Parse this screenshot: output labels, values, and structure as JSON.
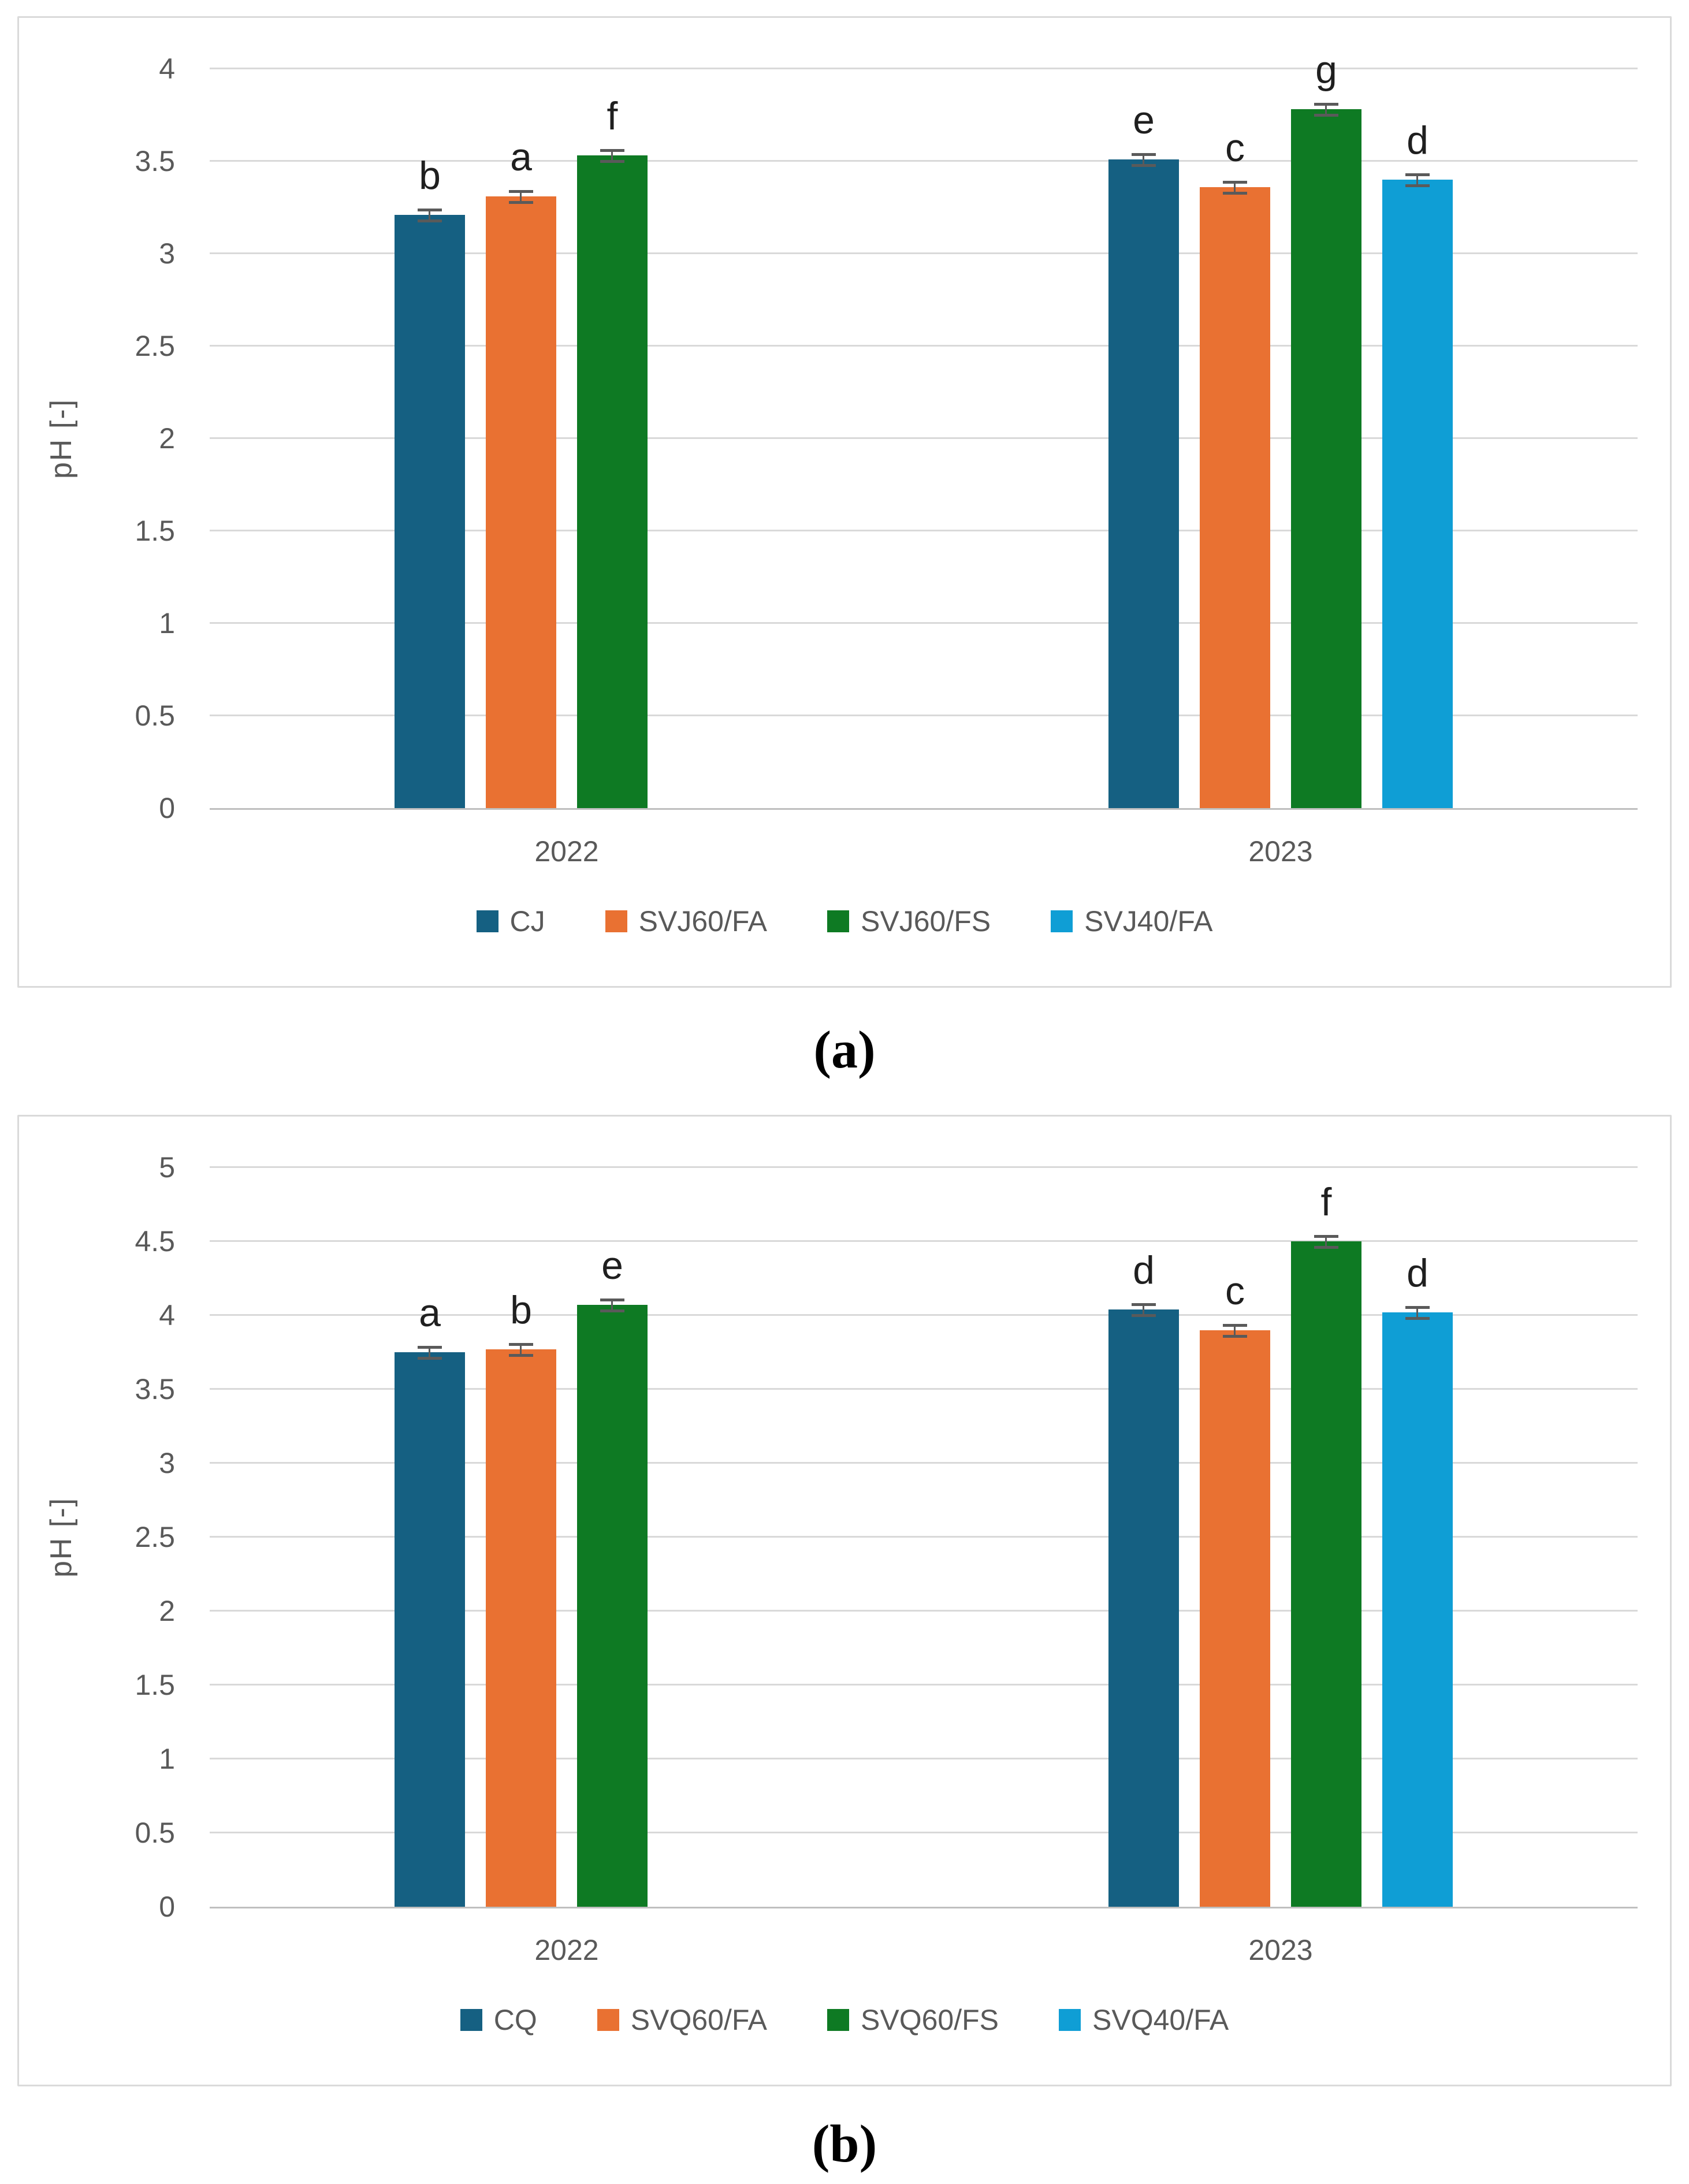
{
  "captions": {
    "a": "(a)",
    "b": "(b)"
  },
  "colors": {
    "series1": "#156082",
    "series2": "#E97132",
    "series3": "#0E7A23",
    "series4": "#0F9ED5",
    "gridline": "#d9d9d9",
    "axis_line": "#bfbfbf",
    "tick_text": "#595959",
    "letter_text": "#1f1f1f",
    "error_bar": "#5a5a5a",
    "panel_border": "#dadada"
  },
  "chart_data": [
    {
      "id": "a",
      "type": "bar",
      "title": "",
      "xlabel": "",
      "ylabel": "pH [-]",
      "ylim": [
        0,
        4
      ],
      "ytick_step": 0.5,
      "grid": true,
      "legend_position": "bottom",
      "categories": [
        "2022",
        "2023"
      ],
      "series": [
        {
          "name": "CJ",
          "color": "#156082",
          "values": [
            3.21,
            3.51
          ],
          "letters": [
            "b",
            "e"
          ]
        },
        {
          "name": "SVJ60/FA",
          "color": "#E97132",
          "values": [
            3.31,
            3.36
          ],
          "letters": [
            "a",
            "c"
          ]
        },
        {
          "name": "SVJ60/FS",
          "color": "#0E7A23",
          "values": [
            3.53,
            3.78
          ],
          "letters": [
            "f",
            "g"
          ]
        },
        {
          "name": "SVJ40/FA",
          "color": "#0F9ED5",
          "values": [
            null,
            3.4
          ],
          "letters": [
            null,
            "d"
          ]
        }
      ],
      "error": 0.02
    },
    {
      "id": "b",
      "type": "bar",
      "title": "",
      "xlabel": "",
      "ylabel": "pH [-]",
      "ylim": [
        0,
        5
      ],
      "ytick_step": 0.5,
      "grid": true,
      "legend_position": "bottom",
      "categories": [
        "2022",
        "2023"
      ],
      "series": [
        {
          "name": "CQ",
          "color": "#156082",
          "values": [
            3.75,
            4.04
          ],
          "letters": [
            "a",
            "d"
          ]
        },
        {
          "name": "SVQ60/FA",
          "color": "#E97132",
          "values": [
            3.77,
            3.9
          ],
          "letters": [
            "b",
            "c"
          ]
        },
        {
          "name": "SVQ60/FS",
          "color": "#0E7A23",
          "values": [
            4.07,
            4.5
          ],
          "letters": [
            "e",
            "f"
          ]
        },
        {
          "name": "SVQ40/FA",
          "color": "#0F9ED5",
          "values": [
            null,
            4.02
          ],
          "letters": [
            null,
            "d"
          ]
        }
      ],
      "error": 0.02
    }
  ]
}
